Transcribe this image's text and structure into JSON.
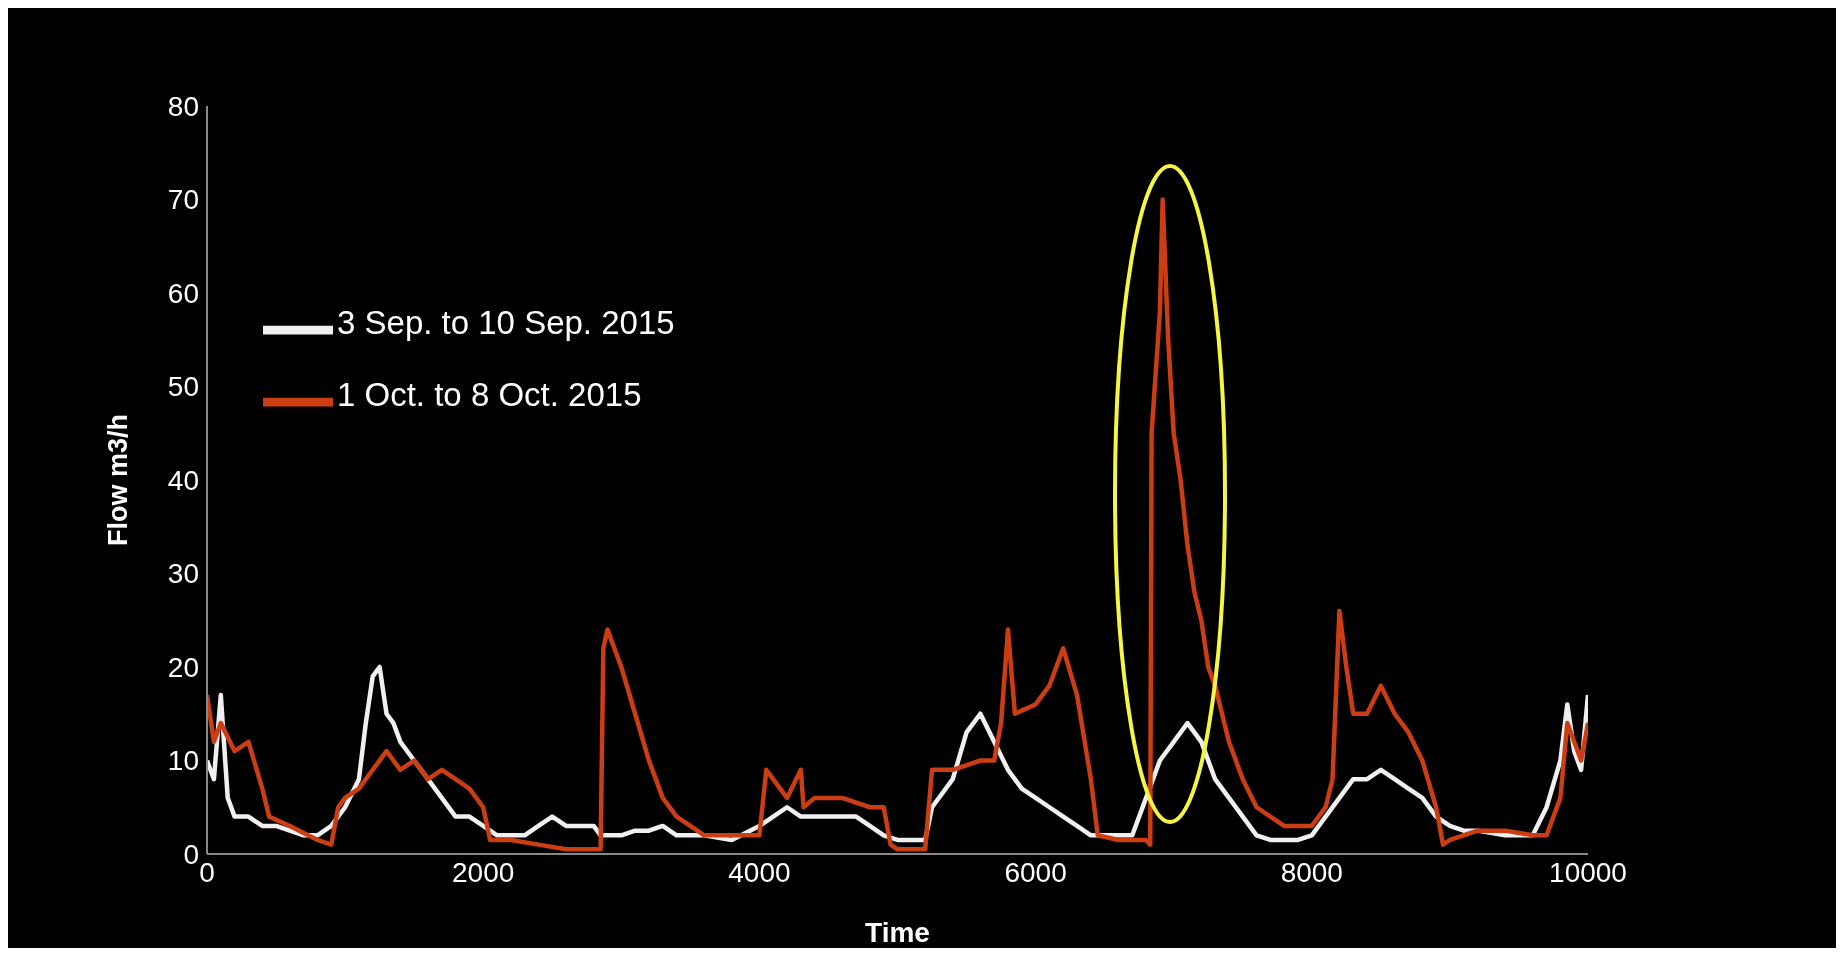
{
  "chart_data": {
    "type": "line",
    "xlabel": "Time",
    "ylabel": "Flow m3/h",
    "xlim": [
      0,
      10000
    ],
    "xticks": [
      0,
      2000,
      4000,
      6000,
      8000,
      10000
    ],
    "ylim": [
      0,
      80
    ],
    "yticks": [
      0,
      10,
      20,
      30,
      40,
      50,
      60,
      70,
      80
    ],
    "grid": false,
    "legend": "top left",
    "marker": "none",
    "line_style": "solid",
    "series": [
      {
        "name": "3 Sep. to 10 Sep. 2015",
        "color": "#f0f0f0",
        "x": [
          0,
          50,
          100,
          150,
          200,
          300,
          400,
          500,
          600,
          700,
          800,
          900,
          1000,
          1100,
          1150,
          1200,
          1250,
          1300,
          1350,
          1400,
          1500,
          1600,
          1700,
          1800,
          1900,
          2000,
          2100,
          2300,
          2400,
          2500,
          2600,
          2700,
          2800,
          2850,
          2900,
          3000,
          3100,
          3200,
          3300,
          3400,
          3500,
          3600,
          3800,
          4000,
          4100,
          4200,
          4300,
          4400,
          4500,
          4600,
          4700,
          4800,
          4900,
          5000,
          5200,
          5250,
          5400,
          5500,
          5600,
          5700,
          5800,
          5900,
          6000,
          6100,
          6200,
          6300,
          6400,
          6600,
          6700,
          6800,
          6900,
          7000,
          7100,
          7200,
          7300,
          7400,
          7500,
          7600,
          7700,
          7800,
          7900,
          8000,
          8100,
          8200,
          8300,
          8400,
          8500,
          8600,
          8700,
          8800,
          8900,
          9000,
          9100,
          9200,
          9400,
          9600,
          9700,
          9800,
          9850,
          9900,
          9950,
          10000
        ],
        "values": [
          10,
          8,
          17,
          6,
          4,
          4,
          3,
          3,
          2.5,
          2,
          2,
          3,
          5,
          8,
          14,
          19,
          20,
          15,
          14,
          12,
          10,
          8,
          6,
          4,
          4,
          3,
          2,
          2,
          3,
          4,
          3,
          3,
          3,
          2,
          2,
          2,
          2.5,
          2.5,
          3,
          2,
          2,
          2,
          1.5,
          3,
          4,
          5,
          4,
          4,
          4,
          4,
          4,
          3,
          2,
          1.5,
          1.5,
          5,
          8,
          13,
          15,
          12,
          9,
          7,
          6,
          5,
          4,
          3,
          2,
          2,
          2,
          6,
          10,
          12,
          14,
          12,
          8,
          6,
          4,
          2,
          1.5,
          1.5,
          1.5,
          2,
          4,
          6,
          8,
          8,
          9,
          8,
          7,
          6,
          4,
          3,
          2.5,
          2.5,
          2,
          2,
          5,
          10,
          16,
          11,
          9,
          17
        ]
      },
      {
        "name": "1 Oct. to 8 Oct. 2015",
        "color": "#cc3d14",
        "x": [
          0,
          50,
          100,
          200,
          300,
          400,
          450,
          600,
          800,
          900,
          950,
          1000,
          1100,
          1200,
          1300,
          1400,
          1500,
          1600,
          1700,
          1800,
          1900,
          2000,
          2050,
          2200,
          2400,
          2600,
          2800,
          2850,
          2870,
          2900,
          3000,
          3100,
          3200,
          3300,
          3400,
          3500,
          3600,
          3800,
          4000,
          4050,
          4150,
          4200,
          4300,
          4320,
          4400,
          4600,
          4800,
          4900,
          4950,
          5000,
          5200,
          5250,
          5400,
          5600,
          5700,
          5750,
          5800,
          5850,
          6000,
          6100,
          6200,
          6300,
          6400,
          6450,
          6600,
          6800,
          6830,
          6840,
          6900,
          6920,
          6960,
          7000,
          7050,
          7100,
          7150,
          7200,
          7250,
          7300,
          7400,
          7500,
          7600,
          7700,
          7800,
          7900,
          8000,
          8100,
          8150,
          8200,
          8250,
          8300,
          8400,
          8500,
          8600,
          8700,
          8800,
          8900,
          8950,
          9000,
          9200,
          9400,
          9600,
          9700,
          9800,
          9850,
          9900,
          9950,
          10000
        ],
        "values": [
          17,
          12,
          14,
          11,
          12,
          7,
          4,
          3,
          1.5,
          1,
          5,
          6,
          7,
          9,
          11,
          9,
          10,
          8,
          9,
          8,
          7,
          5,
          1.5,
          1.5,
          1,
          0.5,
          0.5,
          0.5,
          22,
          24,
          20,
          15,
          10,
          6,
          4,
          3,
          2,
          2,
          2,
          9,
          7,
          6,
          9,
          5,
          6,
          6,
          5,
          5,
          1,
          0.5,
          0.5,
          9,
          9,
          10,
          10,
          14,
          24,
          15,
          16,
          18,
          22,
          17,
          8,
          2,
          1.5,
          1.5,
          1,
          45,
          58,
          70,
          55,
          45,
          40,
          33,
          28,
          25,
          20,
          18,
          12,
          8,
          5,
          4,
          3,
          3,
          3,
          5,
          8,
          26,
          20,
          15,
          15,
          18,
          15,
          13,
          10,
          5,
          1,
          1.5,
          2.5,
          2.5,
          2,
          2,
          6,
          14,
          12,
          10,
          14
        ]
      }
    ]
  }
}
